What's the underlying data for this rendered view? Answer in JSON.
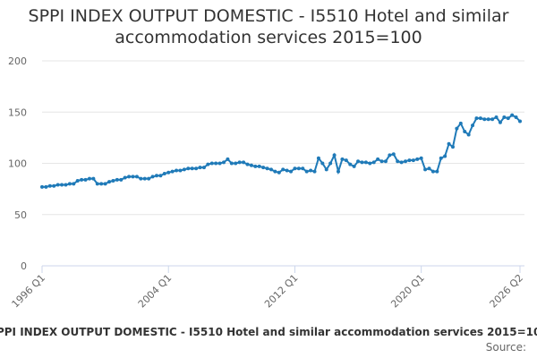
{
  "chart_data": {
    "type": "line",
    "title": "SPPI INDEX OUTPUT DOMESTIC - I5510 Hotel and similar accommodation services 2015=100",
    "source": "Source:",
    "categories": [
      "1996 Q1",
      null,
      null,
      null,
      null,
      null,
      null,
      null,
      null,
      null,
      null,
      null,
      null,
      null,
      null,
      null,
      null,
      null,
      null,
      null,
      null,
      null,
      null,
      null,
      null,
      null,
      null,
      null,
      null,
      null,
      null,
      null,
      "2004 Q1",
      null,
      null,
      null,
      null,
      null,
      null,
      null,
      null,
      null,
      null,
      null,
      null,
      null,
      null,
      null,
      null,
      null,
      null,
      null,
      null,
      null,
      null,
      null,
      null,
      null,
      null,
      null,
      null,
      null,
      null,
      null,
      "2012 Q1",
      null,
      null,
      null,
      null,
      null,
      null,
      null,
      null,
      null,
      null,
      null,
      null,
      null,
      null,
      null,
      null,
      null,
      null,
      null,
      null,
      null,
      null,
      null,
      null,
      null,
      null,
      null,
      null,
      null,
      null,
      null,
      "2020 Q1",
      null,
      null,
      null,
      null,
      null,
      null,
      null,
      null,
      null,
      null,
      null,
      null,
      null,
      null,
      null,
      null,
      null,
      null,
      null,
      null,
      null,
      null,
      null,
      null,
      "2026 Q2"
    ],
    "series": [
      {
        "name": "SPPI INDEX OUTPUT DOMESTIC - I5510 Hotel and similar accommodation services 2015=100",
        "color": "#1f7ab8",
        "values": [
          77,
          77,
          78,
          78,
          79,
          79,
          79,
          80,
          80,
          83,
          84,
          84,
          85,
          85,
          80,
          80,
          80,
          82,
          83,
          84,
          84,
          86,
          87,
          87,
          87,
          85,
          85,
          85,
          87,
          88,
          88,
          90,
          91,
          92,
          93,
          93,
          94,
          95,
          95,
          95,
          96,
          96,
          99,
          100,
          100,
          100,
          101,
          104,
          100,
          100,
          101,
          101,
          99,
          98,
          97,
          97,
          96,
          95,
          94,
          92,
          91,
          94,
          93,
          92,
          95,
          95,
          95,
          92,
          93,
          92,
          105,
          100,
          94,
          100,
          108,
          92,
          104,
          103,
          99,
          97,
          102,
          101,
          101,
          100,
          101,
          104,
          102,
          102,
          108,
          109,
          102,
          101,
          102,
          103,
          103,
          104,
          105,
          94,
          95,
          92,
          92,
          105,
          107,
          119,
          116,
          134,
          139,
          131,
          128,
          137,
          144,
          144,
          143,
          143,
          143,
          145,
          140,
          145,
          144,
          147,
          145,
          141
        ]
      }
    ],
    "ylim": [
      0,
      200
    ],
    "yticks": [
      0,
      50,
      100,
      150,
      200
    ],
    "grid": true
  }
}
